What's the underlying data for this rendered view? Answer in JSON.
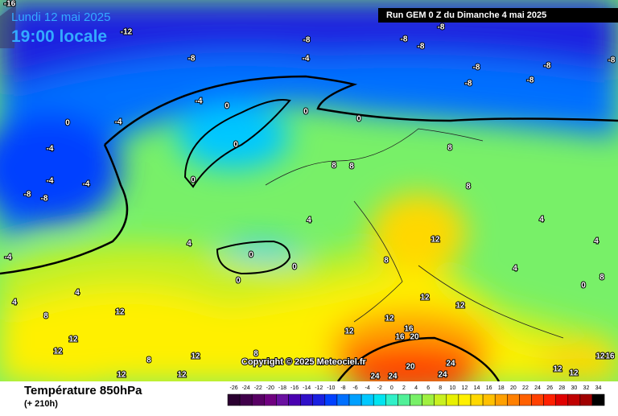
{
  "header": {
    "date": "Lundi 12 mai 2025",
    "time": "19:00 locale",
    "run": "Run GEM 0 Z du Dimanche 4 mai 2025"
  },
  "footer": {
    "title": "Température 850hPa",
    "lead": "(+ 210h)",
    "copyright": "Copyright © 2025 Meteociel.fr"
  },
  "legend": [
    {
      "label": "-26",
      "color": "#2a0030"
    },
    {
      "label": "-24",
      "color": "#40004a"
    },
    {
      "label": "-22",
      "color": "#580064"
    },
    {
      "label": "-20",
      "color": "#700080"
    },
    {
      "label": "-18",
      "color": "#6a10a0"
    },
    {
      "label": "-16",
      "color": "#4a00b0"
    },
    {
      "label": "-14",
      "color": "#3010c8"
    },
    {
      "label": "-12",
      "color": "#1a20e0"
    },
    {
      "label": "-10",
      "color": "#0040ff"
    },
    {
      "label": "-8",
      "color": "#0070ff"
    },
    {
      "label": "-6",
      "color": "#00a0ff"
    },
    {
      "label": "-4",
      "color": "#00c8ff"
    },
    {
      "label": "-2",
      "color": "#00e4f0"
    },
    {
      "label": "0",
      "color": "#30f0c8"
    },
    {
      "label": "2",
      "color": "#50f098"
    },
    {
      "label": "4",
      "color": "#78f068"
    },
    {
      "label": "6",
      "color": "#a0f040"
    },
    {
      "label": "8",
      "color": "#c8f020"
    },
    {
      "label": "10",
      "color": "#e8f000"
    },
    {
      "label": "12",
      "color": "#fff000"
    },
    {
      "label": "14",
      "color": "#ffd800"
    },
    {
      "label": "16",
      "color": "#ffc000"
    },
    {
      "label": "18",
      "color": "#ffa000"
    },
    {
      "label": "20",
      "color": "#ff8000"
    },
    {
      "label": "22",
      "color": "#ff6000"
    },
    {
      "label": "24",
      "color": "#ff4000"
    },
    {
      "label": "26",
      "color": "#ff2000"
    },
    {
      "label": "28",
      "color": "#e00000"
    },
    {
      "label": "30",
      "color": "#c00000"
    },
    {
      "label": "32",
      "color": "#a00000"
    },
    {
      "label": "34",
      "color": "#000000"
    }
  ],
  "map_labels": [
    "-16",
    "-12",
    "-8",
    "-8",
    "-8",
    "-4",
    "-8",
    "-8",
    "-8",
    "-8",
    "-8",
    "-8",
    "-8",
    "-4",
    "0",
    "0",
    "0",
    "-4",
    "0",
    "-4",
    "0",
    "0",
    "-4",
    "-4",
    "-8",
    "-8",
    "8",
    "8",
    "8",
    "8",
    "4",
    "4",
    "4",
    "0",
    "0",
    "0",
    "-4",
    "4",
    "4",
    "8",
    "12",
    "12",
    "12",
    "8",
    "12",
    "12",
    "12",
    "8",
    "12",
    "12",
    "16",
    "20",
    "16",
    "12",
    "12",
    "20",
    "24",
    "24",
    "24",
    "24",
    "12",
    "12",
    "12",
    "16",
    "8",
    "12",
    "8",
    "4",
    "4",
    "0"
  ]
}
